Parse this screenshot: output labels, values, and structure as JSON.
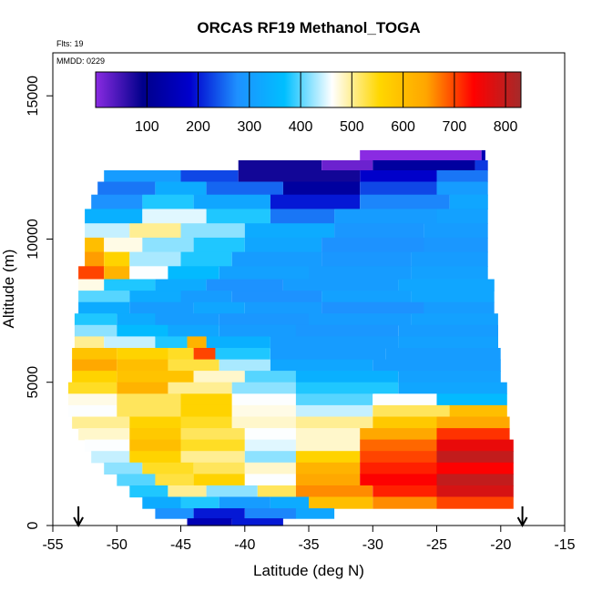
{
  "chart_data": {
    "type": "heatmap",
    "title": "ORCAS RF19 Methanol_TOGA",
    "annotations": {
      "flights": "Flts: 19",
      "date": "MMDD: 0229"
    },
    "xlabel": "Latitude (deg N)",
    "ylabel": "Altitude (m)",
    "xlim": [
      -55,
      -15
    ],
    "ylim": [
      0,
      16500
    ],
    "x_ticks": [
      -55,
      -50,
      -45,
      -40,
      -35,
      -30,
      -25,
      -20,
      -15
    ],
    "y_ticks": [
      0,
      5000,
      10000,
      15000
    ],
    "colorbar": {
      "range": [
        0,
        830
      ],
      "ticks": [
        100,
        200,
        300,
        400,
        500,
        600,
        700,
        800
      ],
      "colors": [
        "#8a2be2",
        "#00008b",
        "#0000cd",
        "#1e90ff",
        "#00bfff",
        "#ffffff",
        "#ffd700",
        "#ffa500",
        "#ff0000",
        "#a52a2a"
      ]
    },
    "arrows": [
      -53,
      -18.3
    ],
    "rows": [
      {
        "alt": 12900,
        "segments": [
          [
            -31,
            -21.5,
            0
          ],
          [
            -21.5,
            -21.2,
            150
          ]
        ]
      },
      {
        "alt": 12600,
        "segments": [
          [
            -40.5,
            -34,
            80
          ],
          [
            -34,
            -30,
            20
          ],
          [
            -30,
            -22,
            120
          ],
          [
            -22,
            -21,
            220
          ]
        ]
      },
      {
        "alt": 12200,
        "segments": [
          [
            -51,
            -45,
            300
          ],
          [
            -45,
            -40.5,
            230
          ],
          [
            -40.5,
            -31,
            80
          ],
          [
            -31,
            -25,
            180
          ],
          [
            -25,
            -21,
            260
          ]
        ]
      },
      {
        "alt": 11800,
        "segments": [
          [
            -51.5,
            -47,
            260
          ],
          [
            -47,
            -43,
            330
          ],
          [
            -43,
            -37,
            250
          ],
          [
            -37,
            -31,
            120
          ],
          [
            -31,
            -25,
            230
          ],
          [
            -25,
            -21,
            300
          ]
        ]
      },
      {
        "alt": 11300,
        "segments": [
          [
            -52,
            -48,
            280
          ],
          [
            -48,
            -44,
            380
          ],
          [
            -44,
            -38,
            320
          ],
          [
            -38,
            -31,
            200
          ],
          [
            -31,
            -24,
            270
          ],
          [
            -24,
            -21,
            320
          ]
        ]
      },
      {
        "alt": 10800,
        "segments": [
          [
            -52.5,
            -48,
            340
          ],
          [
            -48,
            -43,
            450
          ],
          [
            -43,
            -38,
            380
          ],
          [
            -38,
            -33,
            260
          ],
          [
            -33,
            -25,
            300
          ],
          [
            -25,
            -21,
            310
          ]
        ]
      },
      {
        "alt": 10300,
        "segments": [
          [
            -52.5,
            -49,
            440
          ],
          [
            -49,
            -45,
            500
          ],
          [
            -45,
            -40,
            420
          ],
          [
            -40,
            -33,
            330
          ],
          [
            -33,
            -26,
            290
          ],
          [
            -26,
            -21,
            300
          ]
        ]
      },
      {
        "alt": 9800,
        "segments": [
          [
            -52.5,
            -51,
            600
          ],
          [
            -51,
            -48,
            470
          ],
          [
            -48,
            -44,
            420
          ],
          [
            -44,
            -40,
            380
          ],
          [
            -40,
            -34,
            320
          ],
          [
            -34,
            -26,
            280
          ],
          [
            -26,
            -21,
            290
          ]
        ]
      },
      {
        "alt": 9300,
        "segments": [
          [
            -52.5,
            -51,
            650
          ],
          [
            -51,
            -49,
            560
          ],
          [
            -49,
            -45,
            430
          ],
          [
            -45,
            -41,
            380
          ],
          [
            -41,
            -34,
            300
          ],
          [
            -34,
            -27,
            290
          ],
          [
            -27,
            -21,
            300
          ]
        ]
      },
      {
        "alt": 8800,
        "segments": [
          [
            -53,
            -51,
            700
          ],
          [
            -51,
            -49,
            620
          ],
          [
            -49,
            -46,
            460
          ],
          [
            -46,
            -42,
            360
          ],
          [
            -42,
            -35,
            310
          ],
          [
            -35,
            -27,
            300
          ],
          [
            -27,
            -21,
            310
          ]
        ]
      },
      {
        "alt": 8400,
        "segments": [
          [
            -53,
            -51,
            470
          ],
          [
            -51,
            -47,
            380
          ],
          [
            -47,
            -43,
            330
          ],
          [
            -43,
            -37,
            280
          ],
          [
            -37,
            -28,
            300
          ],
          [
            -28,
            -20.5,
            320
          ]
        ]
      },
      {
        "alt": 8000,
        "segments": [
          [
            -53,
            -49,
            400
          ],
          [
            -49,
            -45,
            330
          ],
          [
            -45,
            -41,
            300
          ],
          [
            -41,
            -34,
            280
          ],
          [
            -34,
            -27,
            310
          ],
          [
            -27,
            -20.5,
            320
          ]
        ]
      },
      {
        "alt": 7600,
        "segments": [
          [
            -53,
            -49,
            330
          ],
          [
            -49,
            -44,
            300
          ],
          [
            -44,
            -40,
            320
          ],
          [
            -40,
            -34,
            300
          ],
          [
            -34,
            -26,
            280
          ],
          [
            -26,
            -20.5,
            300
          ]
        ]
      },
      {
        "alt": 7200,
        "segments": [
          [
            -53.3,
            -50,
            380
          ],
          [
            -50,
            -47,
            330
          ],
          [
            -47,
            -42,
            300
          ],
          [
            -42,
            -35,
            290
          ],
          [
            -35,
            -27,
            300
          ],
          [
            -27,
            -20.2,
            310
          ]
        ]
      },
      {
        "alt": 6800,
        "segments": [
          [
            -53.3,
            -50,
            420
          ],
          [
            -50,
            -46,
            360
          ],
          [
            -46,
            -42,
            320
          ],
          [
            -42,
            -36,
            300
          ],
          [
            -36,
            -28,
            290
          ],
          [
            -28,
            -20.2,
            300
          ]
        ]
      },
      {
        "alt": 6400,
        "segments": [
          [
            -53.3,
            -51,
            500
          ],
          [
            -51,
            -47,
            440
          ],
          [
            -47,
            -44.5,
            380
          ],
          [
            -44.5,
            -43,
            620
          ],
          [
            -43,
            -38,
            340
          ],
          [
            -38,
            -28,
            300
          ],
          [
            -28,
            -20.2,
            310
          ]
        ]
      },
      {
        "alt": 6000,
        "segments": [
          [
            -53.5,
            -50,
            590
          ],
          [
            -50,
            -46,
            560
          ],
          [
            -46,
            -44,
            540
          ],
          [
            -44,
            -42.3,
            700
          ],
          [
            -42.3,
            -38,
            380
          ],
          [
            -38,
            -29,
            300
          ],
          [
            -29,
            -20,
            300
          ]
        ]
      },
      {
        "alt": 5600,
        "segments": [
          [
            -53.5,
            -50,
            640
          ],
          [
            -50,
            -46,
            600
          ],
          [
            -46,
            -42,
            530
          ],
          [
            -42,
            -38,
            430
          ],
          [
            -38,
            -30,
            320
          ],
          [
            -30,
            -20,
            300
          ]
        ]
      },
      {
        "alt": 5200,
        "segments": [
          [
            -53.5,
            -50,
            560
          ],
          [
            -50,
            -44,
            590
          ],
          [
            -44,
            -40,
            480
          ],
          [
            -40,
            -36,
            400
          ],
          [
            -36,
            -28,
            340
          ],
          [
            -28,
            -20,
            310
          ]
        ]
      },
      {
        "alt": 4800,
        "segments": [
          [
            -53.8,
            -50,
            540
          ],
          [
            -50,
            -46,
            620
          ],
          [
            -46,
            -41,
            500
          ],
          [
            -41,
            -36,
            420
          ],
          [
            -36,
            -28,
            380
          ],
          [
            -28,
            -19.5,
            320
          ]
        ]
      },
      {
        "alt": 4400,
        "segments": [
          [
            -53.8,
            -50,
            470
          ],
          [
            -50,
            -45,
            520
          ],
          [
            -45,
            -41,
            560
          ],
          [
            -41,
            -36,
            460
          ],
          [
            -36,
            -30,
            400
          ],
          [
            -30,
            -25,
            460
          ],
          [
            -25,
            -19.5,
            360
          ]
        ]
      },
      {
        "alt": 4000,
        "segments": [
          [
            -53.8,
            -50,
            460
          ],
          [
            -50,
            -45,
            520
          ],
          [
            -45,
            -41,
            560
          ],
          [
            -41,
            -36,
            470
          ],
          [
            -36,
            -30,
            440
          ],
          [
            -30,
            -24,
            520
          ],
          [
            -24,
            -19.5,
            600
          ]
        ]
      },
      {
        "alt": 3600,
        "segments": [
          [
            -53.5,
            -49,
            500
          ],
          [
            -49,
            -45,
            560
          ],
          [
            -45,
            -41,
            540
          ],
          [
            -41,
            -36,
            480
          ],
          [
            -36,
            -30,
            500
          ],
          [
            -30,
            -25,
            580
          ],
          [
            -25,
            -19.3,
            640
          ]
        ]
      },
      {
        "alt": 3200,
        "segments": [
          [
            -53,
            -49,
            480
          ],
          [
            -49,
            -45,
            580
          ],
          [
            -45,
            -40,
            520
          ],
          [
            -40,
            -36,
            460
          ],
          [
            -36,
            -31,
            480
          ],
          [
            -31,
            -25,
            640
          ],
          [
            -25,
            -19.3,
            710
          ]
        ]
      },
      {
        "alt": 2800,
        "segments": [
          [
            -52.5,
            -49,
            460
          ],
          [
            -49,
            -45,
            600
          ],
          [
            -45,
            -40,
            540
          ],
          [
            -40,
            -36,
            450
          ],
          [
            -36,
            -31,
            480
          ],
          [
            -31,
            -25,
            680
          ],
          [
            -25,
            -19,
            760
          ]
        ]
      },
      {
        "alt": 2400,
        "segments": [
          [
            -52,
            -49,
            440
          ],
          [
            -49,
            -45,
            560
          ],
          [
            -45,
            -40,
            500
          ],
          [
            -40,
            -36,
            420
          ],
          [
            -36,
            -31,
            560
          ],
          [
            -31,
            -25,
            700
          ],
          [
            -25,
            -19,
            800
          ]
        ]
      },
      {
        "alt": 2000,
        "segments": [
          [
            -51,
            -48,
            420
          ],
          [
            -48,
            -44,
            540
          ],
          [
            -44,
            -40,
            520
          ],
          [
            -40,
            -36,
            480
          ],
          [
            -36,
            -31,
            620
          ],
          [
            -31,
            -25,
            720
          ],
          [
            -25,
            -19,
            740
          ]
        ]
      },
      {
        "alt": 1600,
        "segments": [
          [
            -50,
            -47,
            400
          ],
          [
            -47,
            -44,
            530
          ],
          [
            -44,
            -40,
            560
          ],
          [
            -40,
            -36,
            460
          ],
          [
            -36,
            -31,
            640
          ],
          [
            -31,
            -25,
            740
          ],
          [
            -25,
            -19,
            800
          ]
        ]
      },
      {
        "alt": 1200,
        "segments": [
          [
            -49,
            -46,
            380
          ],
          [
            -46,
            -43,
            500
          ],
          [
            -43,
            -39,
            420
          ],
          [
            -39,
            -36,
            520
          ],
          [
            -36,
            -30,
            660
          ],
          [
            -30,
            -25,
            720
          ],
          [
            -25,
            -19,
            780
          ]
        ]
      },
      {
        "alt": 800,
        "segments": [
          [
            -48,
            -45,
            330
          ],
          [
            -45,
            -42,
            380
          ],
          [
            -42,
            -38,
            300
          ],
          [
            -38,
            -35,
            330
          ],
          [
            -35,
            -30,
            600
          ],
          [
            -30,
            -25,
            660
          ],
          [
            -25,
            -19,
            700
          ]
        ]
      },
      {
        "alt": 400,
        "segments": [
          [
            -47,
            -44,
            280
          ],
          [
            -44,
            -40,
            200
          ],
          [
            -40,
            -36,
            270
          ],
          [
            -36,
            -33,
            320
          ]
        ]
      },
      {
        "alt": 100,
        "segments": [
          [
            -44.5,
            -41,
            150
          ],
          [
            -41,
            -37,
            200
          ]
        ]
      }
    ]
  }
}
